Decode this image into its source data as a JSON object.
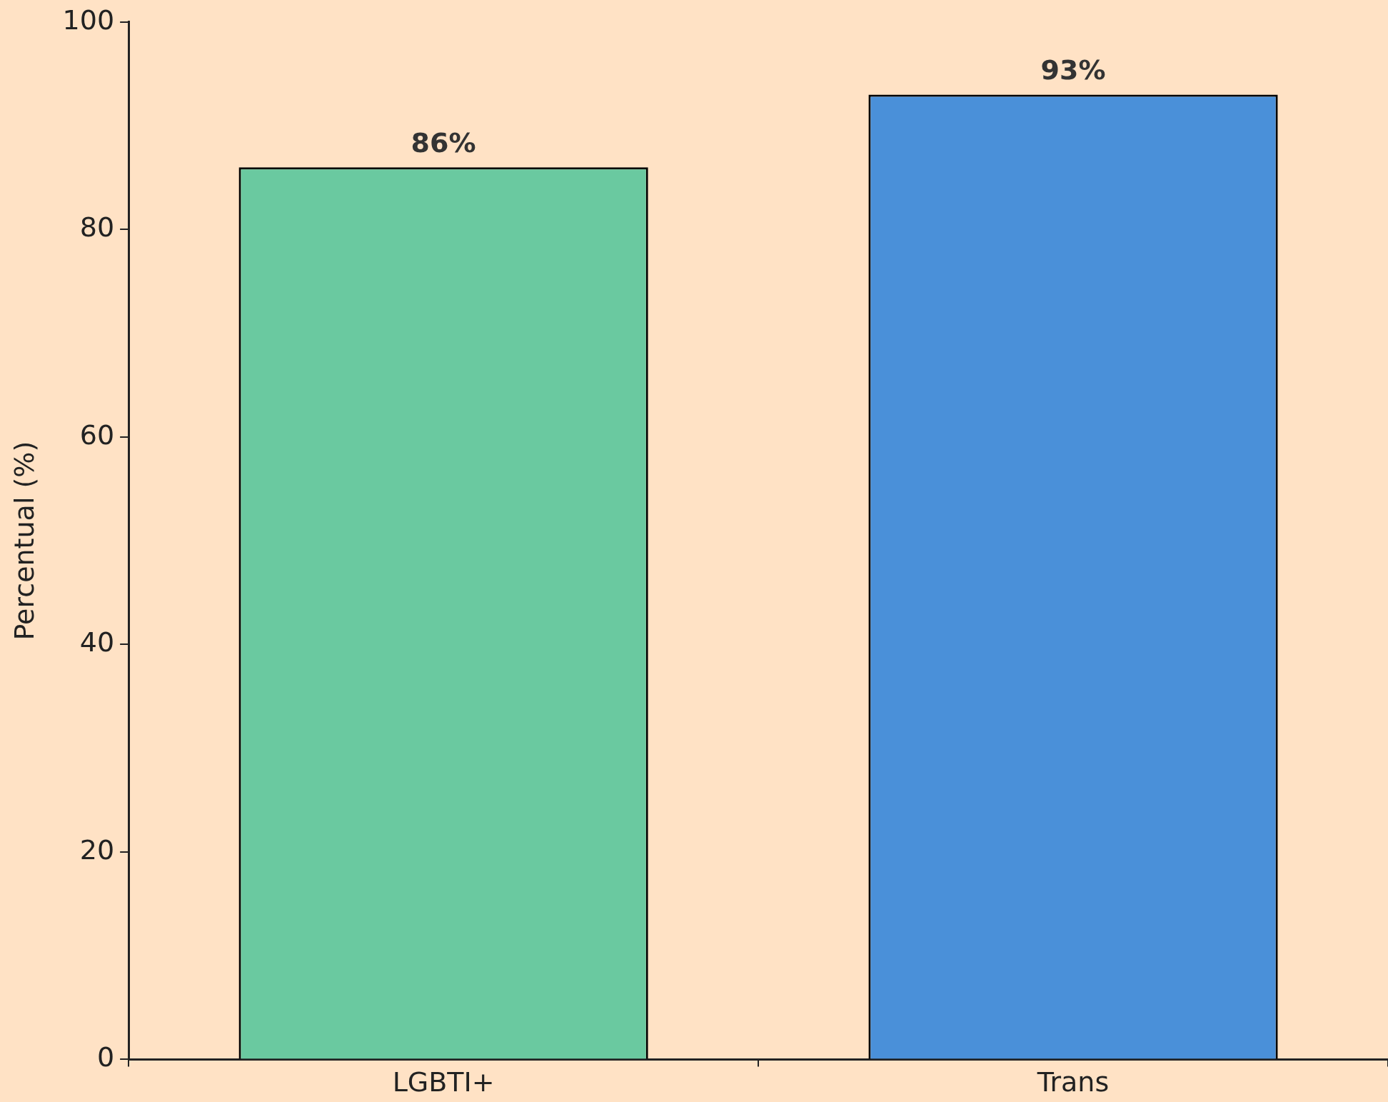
{
  "chart_data": {
    "type": "bar",
    "ylabel": "Percentual (%)",
    "categories": [
      "LGBTI+",
      "Trans"
    ],
    "values": [
      86,
      93
    ],
    "colors": [
      "#6ac9a0",
      "#4a90d9"
    ],
    "value_labels": [
      "86%",
      "93%"
    ],
    "ylim": [
      0,
      100
    ],
    "yticks": [
      0,
      20,
      40,
      60,
      80,
      100
    ],
    "grid": false,
    "legend": false
  }
}
